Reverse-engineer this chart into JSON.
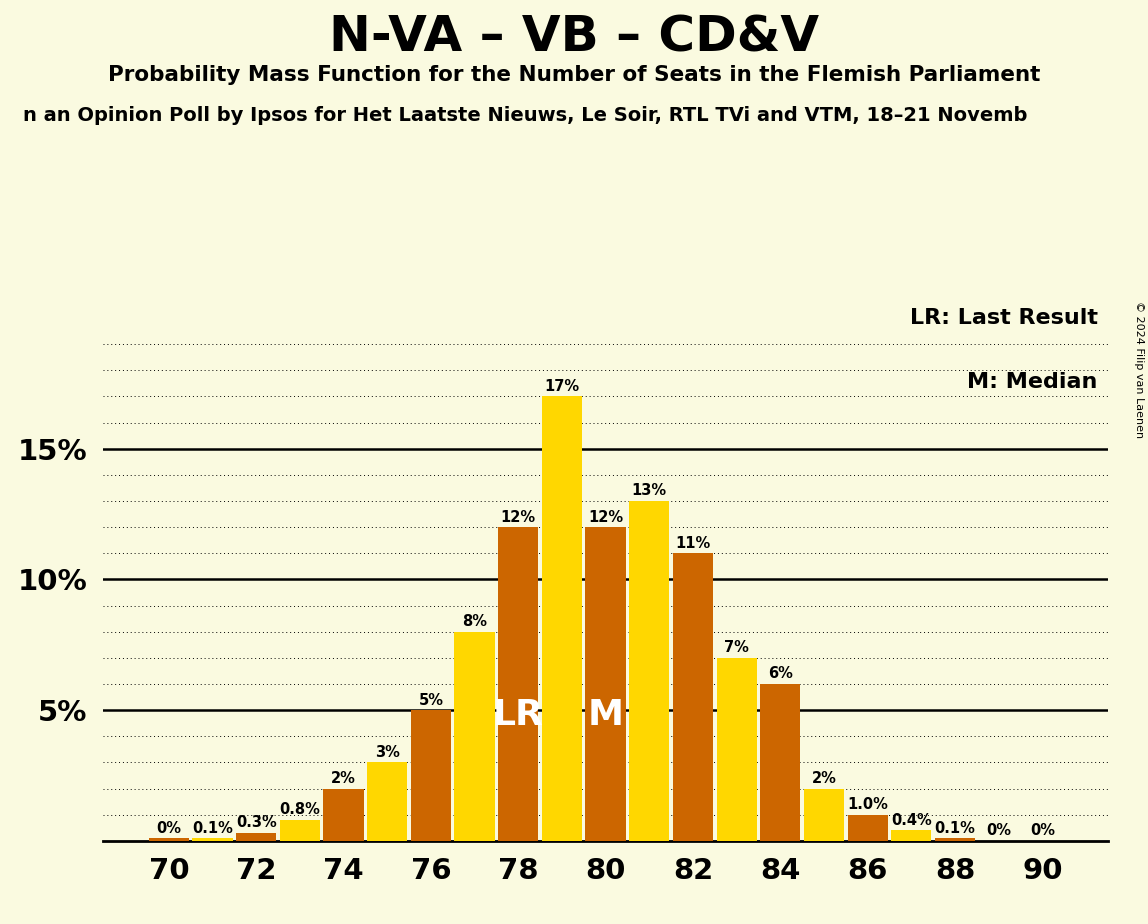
{
  "title": "N-VA – VB – CD&V",
  "subtitle": "Probability Mass Function for the Number of Seats in the Flemish Parliament",
  "subtitle2": "n an Opinion Poll by Ipsos for Het Laatste Nieuws, Le Soir, RTL TVi and VTM, 18–21 Novemb",
  "seats": [
    70,
    71,
    72,
    73,
    74,
    75,
    76,
    77,
    78,
    79,
    80,
    81,
    82,
    83,
    84,
    85,
    86,
    87,
    88,
    89,
    90
  ],
  "values": [
    0.001,
    0.001,
    0.003,
    0.008,
    0.02,
    0.03,
    0.05,
    0.08,
    0.12,
    0.17,
    0.12,
    0.13,
    0.11,
    0.07,
    0.06,
    0.02,
    0.01,
    0.004,
    0.001,
    0.0,
    0.0
  ],
  "colors": [
    "orange",
    "yellow",
    "orange",
    "yellow",
    "orange",
    "yellow",
    "orange",
    "yellow",
    "orange",
    "yellow",
    "orange",
    "yellow",
    "orange",
    "yellow",
    "orange",
    "yellow",
    "orange",
    "yellow",
    "orange",
    "yellow",
    "orange"
  ],
  "labels": [
    "0%",
    "0.1%",
    "0.3%",
    "0.8%",
    "2%",
    "3%",
    "5%",
    "8%",
    "12%",
    "17%",
    "12%",
    "13%",
    "11%",
    "7%",
    "6%",
    "2%",
    "1.0%",
    "0.4%",
    "0.1%",
    "0%",
    "0%"
  ],
  "yellow_color": "#FFD700",
  "orange_color": "#CC6600",
  "background_color": "#FAFAE0",
  "lr_seat": 78,
  "median_seat": 80,
  "xlabel_seats": [
    70,
    72,
    74,
    76,
    78,
    80,
    82,
    84,
    86,
    88,
    90
  ],
  "copyright_text": "© 2024 Filip van Laenen",
  "lr_label": "LR: Last Result",
  "median_label": "M: Median",
  "ylim_max": 0.205,
  "solid_gridlines": [
    0.05,
    0.1,
    0.15
  ],
  "all_gridlines": [
    0.01,
    0.02,
    0.03,
    0.04,
    0.05,
    0.06,
    0.07,
    0.08,
    0.09,
    0.1,
    0.11,
    0.12,
    0.13,
    0.14,
    0.15,
    0.16,
    0.17,
    0.18,
    0.19
  ]
}
